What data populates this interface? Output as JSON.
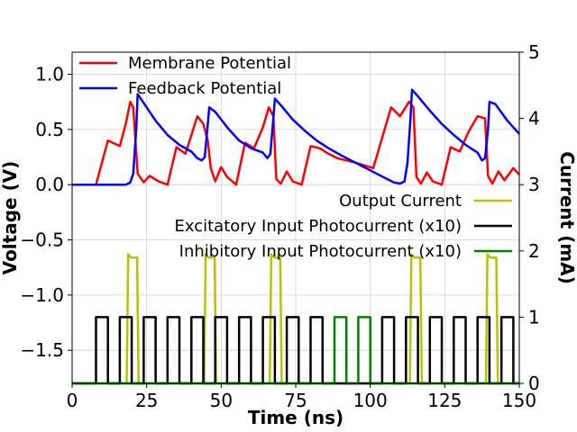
{
  "chart_data": {
    "type": "line",
    "title": "",
    "xlabel": "Time (ns)",
    "ylabel_left": "Voltage (V)",
    "ylabel_right": "Current (mA)",
    "xlim": [
      0,
      150
    ],
    "ylim_left": [
      -1.8,
      1.2
    ],
    "ylim_right": [
      0,
      5
    ],
    "xticks": [
      0,
      25,
      50,
      75,
      100,
      125,
      150
    ],
    "xtick_labels": [
      "0",
      "25",
      "50",
      "75",
      "100",
      "125",
      "150"
    ],
    "yticks_left": [
      1.0,
      0.5,
      0.0,
      -0.5,
      -1.0,
      -1.5
    ],
    "ytick_labels_left": [
      "1.0",
      "0.5",
      "0.0",
      "−0.5",
      "−1.0",
      "−1.5"
    ],
    "yticks_right": [
      0,
      1,
      2,
      3,
      4,
      5
    ],
    "ytick_labels_right": [
      "0",
      "1",
      "2",
      "3",
      "4",
      "5"
    ],
    "grid": true,
    "legend_top_left": [
      "Membrane Potential",
      "Feedback Potential"
    ],
    "legend_right": [
      "Output Current",
      "Excitatory Input Photocurrent (x10)",
      "Inhibitory Input Photocurrent (x10)"
    ],
    "colors": {
      "membrane": "#ff0000",
      "feedback": "#0000ff",
      "output": "#bfbf00",
      "excitatory": "#000000",
      "inhibitory": "#008000"
    },
    "series": [
      {
        "name": "Membrane Potential",
        "axis": "left",
        "x": [
          0,
          8,
          12,
          16,
          18,
          19.5,
          20.5,
          22,
          24,
          26,
          29,
          32,
          35,
          38,
          40,
          42,
          44,
          45.5,
          46.5,
          48,
          50,
          52,
          55,
          58,
          61,
          64,
          66,
          67.5,
          68.5,
          70,
          72,
          74,
          77,
          80,
          83,
          86,
          89,
          95,
          101,
          107,
          110,
          113,
          114.5,
          115.5,
          117,
          119,
          121,
          124,
          127,
          130,
          133,
          136,
          138.5,
          139.5,
          141,
          143,
          145,
          148,
          150
        ],
        "y": [
          0,
          0,
          0.4,
          0.35,
          0.55,
          0.75,
          0.7,
          0.1,
          0.02,
          0.08,
          0.03,
          0.0,
          0.34,
          0.28,
          0.45,
          0.62,
          0.55,
          0.4,
          0.15,
          0.03,
          0.16,
          0.07,
          0.0,
          0.38,
          0.33,
          0.52,
          0.7,
          0.62,
          0.05,
          0.01,
          0.12,
          0.03,
          0.0,
          0.35,
          0.33,
          0.28,
          0.24,
          0.2,
          0.15,
          0.7,
          0.62,
          0.75,
          0.7,
          0.07,
          0.01,
          0.11,
          0.03,
          0.0,
          0.34,
          0.3,
          0.48,
          0.62,
          0.6,
          0.08,
          0.01,
          0.12,
          0.04,
          0.15,
          0.09
        ]
      },
      {
        "name": "Feedback Potential",
        "axis": "left",
        "x": [
          0,
          18,
          19.5,
          20.5,
          21.5,
          22,
          24,
          28,
          32,
          36,
          40,
          42,
          43.5,
          44.5,
          45.5,
          46,
          48,
          52,
          56,
          60,
          64,
          65.5,
          66.5,
          67.5,
          68,
          70,
          74,
          78,
          82,
          86,
          90,
          95,
          100,
          105,
          108,
          110,
          111.5,
          112.5,
          113.5,
          114,
          116,
          120,
          124,
          128,
          132,
          136,
          137.5,
          138.5,
          139.5,
          140,
          142,
          146,
          150
        ],
        "y": [
          0,
          0,
          0.02,
          0.1,
          0.5,
          0.82,
          0.74,
          0.58,
          0.45,
          0.36,
          0.3,
          0.24,
          0.22,
          0.25,
          0.55,
          0.7,
          0.66,
          0.52,
          0.4,
          0.33,
          0.29,
          0.24,
          0.28,
          0.6,
          0.78,
          0.72,
          0.59,
          0.49,
          0.4,
          0.33,
          0.27,
          0.2,
          0.13,
          0.06,
          0.02,
          0.01,
          0.03,
          0.2,
          0.6,
          0.86,
          0.8,
          0.67,
          0.55,
          0.45,
          0.36,
          0.29,
          0.22,
          0.24,
          0.5,
          0.75,
          0.73,
          0.58,
          0.46
        ]
      },
      {
        "name": "Output Current",
        "axis": "right",
        "x": [
          0,
          18.3,
          18.8,
          19.8,
          21.8,
          22.3,
          44.3,
          44.8,
          45.8,
          47.8,
          48.3,
          66.3,
          66.8,
          67.8,
          69.8,
          70.3,
          113.3,
          113.8,
          114.8,
          116.8,
          117.3,
          138.8,
          139.3,
          140.3,
          142.3,
          142.8,
          150
        ],
        "y": [
          0,
          0,
          1.95,
          1.9,
          1.9,
          0,
          0,
          1.95,
          1.9,
          1.9,
          0,
          0,
          1.95,
          1.9,
          1.9,
          0,
          0,
          1.95,
          1.9,
          1.9,
          0,
          0,
          1.95,
          1.9,
          1.9,
          0,
          0
        ]
      },
      {
        "name": "Excitatory Input Photocurrent (x10)",
        "axis": "right",
        "pulse_starts": [
          8,
          16,
          24,
          32,
          40,
          48,
          56,
          64,
          72,
          80,
          104,
          112,
          120,
          128,
          136,
          144
        ],
        "pulse_width": 4,
        "high": 1,
        "x_end": 150
      },
      {
        "name": "Inhibitory Input Photocurrent (x10)",
        "axis": "right",
        "pulse_starts": [
          88,
          96
        ],
        "pulse_width": 4,
        "high": 1,
        "x_end": 150
      }
    ]
  }
}
